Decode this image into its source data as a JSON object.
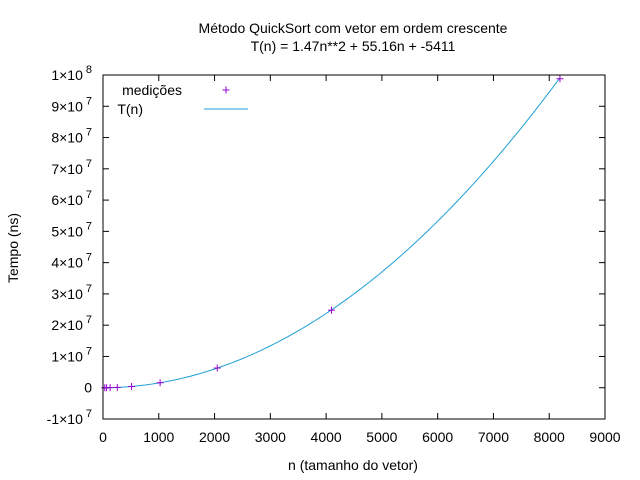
{
  "chart_data": {
    "type": "scatter",
    "title": "Método QuickSort com vetor em ordem crescente",
    "subtitle": "T(n) = 1.47n**2 + 55.16n + -5411",
    "xlabel": "n (tamanho do vetor)",
    "ylabel": "Tempo (ns)",
    "xlim": [
      0,
      9000
    ],
    "ylim": [
      -10000000,
      100000000
    ],
    "x_ticks": [
      0,
      1000,
      2000,
      3000,
      4000,
      5000,
      6000,
      7000,
      8000,
      9000
    ],
    "x_tick_labels": [
      "0",
      "1000",
      "2000",
      "3000",
      "4000",
      "5000",
      "6000",
      "7000",
      "8000",
      "9000"
    ],
    "y_ticks": [
      {
        "value": -10000000,
        "mantissa": "-1×10",
        "exp": "7"
      },
      {
        "value": 0,
        "mantissa": "0",
        "exp": ""
      },
      {
        "value": 10000000,
        "mantissa": "1×10",
        "exp": "7"
      },
      {
        "value": 20000000,
        "mantissa": "2×10",
        "exp": "7"
      },
      {
        "value": 30000000,
        "mantissa": "3×10",
        "exp": "7"
      },
      {
        "value": 40000000,
        "mantissa": "4×10",
        "exp": "7"
      },
      {
        "value": 50000000,
        "mantissa": "5×10",
        "exp": "7"
      },
      {
        "value": 60000000,
        "mantissa": "6×10",
        "exp": "7"
      },
      {
        "value": 70000000,
        "mantissa": "7×10",
        "exp": "7"
      },
      {
        "value": 80000000,
        "mantissa": "8×10",
        "exp": "7"
      },
      {
        "value": 90000000,
        "mantissa": "9×10",
        "exp": "7"
      },
      {
        "value": 100000000,
        "mantissa": "1×10",
        "exp": "8"
      }
    ],
    "grid": false,
    "legend_position": "top-left",
    "series": [
      {
        "name": "medições",
        "kind": "points",
        "marker": "plus",
        "color": "#9400d3",
        "points": [
          {
            "x": 32,
            "y": -3000
          },
          {
            "x": 64,
            "y": 4000
          },
          {
            "x": 128,
            "y": 25000
          },
          {
            "x": 256,
            "y": 100000
          },
          {
            "x": 512,
            "y": 390000
          },
          {
            "x": 1024,
            "y": 1600000
          },
          {
            "x": 2048,
            "y": 6300000
          },
          {
            "x": 4096,
            "y": 24800000
          },
          {
            "x": 8192,
            "y": 98800000
          }
        ]
      },
      {
        "name": "T(n)",
        "kind": "curve",
        "color": "#1e9fd6",
        "coefficients": [
          1.47,
          55.16,
          -5411
        ],
        "x_range": [
          0,
          8192
        ]
      }
    ]
  }
}
